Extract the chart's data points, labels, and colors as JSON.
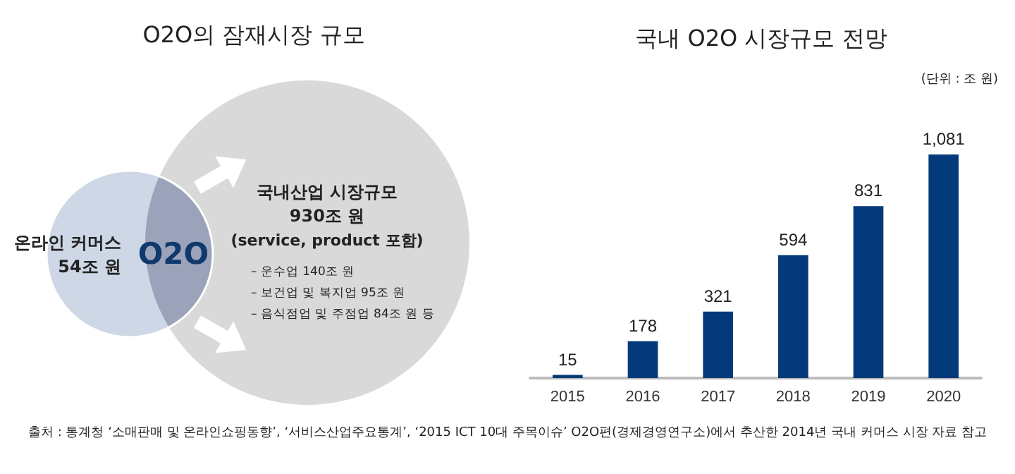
{
  "chart_data": [
    {
      "type": "other",
      "title": "O2O의 잠재시장 규모",
      "annotations": [
        "온라인 커머스",
        "54조 원",
        "O2O",
        "국내산업 시장규모",
        "930조 원",
        "(service, product 포함)",
        "– 운수업 140조 원",
        "– 보건업 및 복지업 95조 원",
        "– 음식점업 및 주점업 84조 원 등",
        "출처 : 통계청 ‘소매판매 및 온라인쇼핑동향’, ‘서비스산업주요통계’, ‘2015 ICT 10대 주목이슈’ O2O편(경제경영연구소)에서 추산한 2014년 국내 커머스 시장 자료 참고"
      ]
    },
    {
      "type": "bar",
      "title": "국내 O2O 시장규모 전망",
      "annotations": [
        "(단위 : 조 원)"
      ],
      "categories": [
        "2015",
        "2016",
        "2017",
        "2018",
        "2019",
        "2020"
      ],
      "values": [
        15,
        178,
        321,
        594,
        831,
        1081
      ],
      "color": "#053a7a",
      "value_labels": [
        "15",
        "178",
        "321",
        "594",
        "831",
        "1,081"
      ]
    }
  ]
}
